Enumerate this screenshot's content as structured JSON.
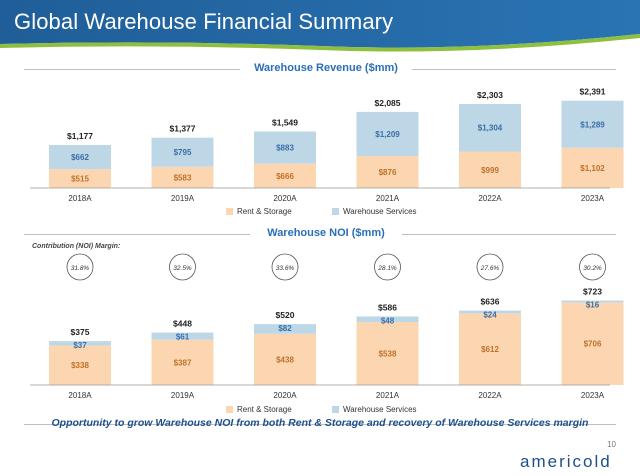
{
  "header": {
    "title": "Global Warehouse Financial Summary"
  },
  "colors": {
    "rent": "#fbd6b0",
    "services": "#bdd7e7",
    "rent_text": "#c0712a",
    "services_text": "#3a6ea5",
    "accent": "#2a6fb7"
  },
  "chart_data": [
    {
      "type": "bar",
      "title": "Warehouse Revenue ($mm)",
      "categories": [
        "2018A",
        "2019A",
        "2020A",
        "2021A",
        "2022A",
        "2023A"
      ],
      "series": [
        {
          "name": "Rent & Storage",
          "values": [
            515,
            583,
            666,
            876,
            999,
            1102
          ],
          "labels": [
            "$515",
            "$583",
            "$666",
            "$876",
            "$999",
            "$1,102"
          ]
        },
        {
          "name": "Warehouse Services",
          "values": [
            662,
            795,
            883,
            1209,
            1304,
            1289
          ],
          "labels": [
            "$662",
            "$795",
            "$883",
            "$1,209",
            "$1,304",
            "$1,289"
          ]
        }
      ],
      "totals": [
        1177,
        1377,
        1549,
        2085,
        2303,
        2391
      ],
      "total_labels": [
        "$1,177",
        "$1,377",
        "$1,549",
        "$2,085",
        "$2,303",
        "$2,391"
      ],
      "stacked": true
    },
    {
      "type": "bar",
      "title": "Warehouse NOI ($mm)",
      "subtitle": "Contribution (NOI) Margin:",
      "margins": [
        "31.8%",
        "32.5%",
        "33.6%",
        "28.1%",
        "27.6%",
        "30.2%"
      ],
      "categories": [
        "2018A",
        "2019A",
        "2020A",
        "2021A",
        "2022A",
        "2023A"
      ],
      "series": [
        {
          "name": "Rent & Storage",
          "values": [
            338,
            387,
            438,
            538,
            612,
            706
          ],
          "labels": [
            "$338",
            "$387",
            "$438",
            "$538",
            "$612",
            "$706"
          ]
        },
        {
          "name": "Warehouse Services",
          "values": [
            37,
            61,
            82,
            48,
            24,
            16
          ],
          "labels": [
            "$37",
            "$61",
            "$82",
            "$48",
            "$24",
            "$16"
          ]
        }
      ],
      "totals": [
        375,
        448,
        520,
        586,
        636,
        723
      ],
      "total_labels": [
        "$375",
        "$448",
        "$520",
        "$586",
        "$636",
        "$723"
      ],
      "stacked": true
    }
  ],
  "footer": {
    "text": "Opportunity to grow Warehouse NOI from both Rent & Storage and recovery of Warehouse Services margin",
    "page": "10",
    "logo": "americold"
  }
}
